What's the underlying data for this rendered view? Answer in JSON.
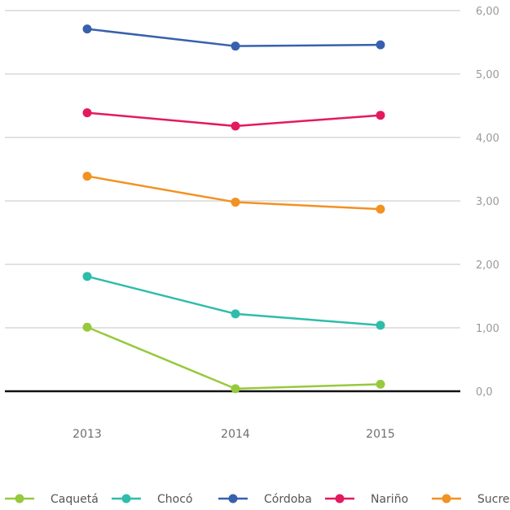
{
  "chart_data": {
    "type": "line",
    "categories": [
      "2013",
      "2014",
      "2015"
    ],
    "ylim": [
      0,
      6
    ],
    "yticks": [
      "0,0",
      "1,00",
      "2,00",
      "3,00",
      "4,00",
      "5,00",
      "6,00"
    ],
    "grid": true,
    "legend_position": "bottom",
    "series": [
      {
        "name": "Caquetá",
        "color": "#97c93d",
        "values": [
          1.01,
          0.04,
          0.11
        ]
      },
      {
        "name": "Chocó",
        "color": "#2ebdaa",
        "values": [
          1.81,
          1.22,
          1.04
        ]
      },
      {
        "name": "Córdoba",
        "color": "#3761ad",
        "values": [
          5.71,
          5.44,
          5.46
        ]
      },
      {
        "name": "Nariño",
        "color": "#e4195f",
        "values": [
          4.39,
          4.18,
          4.35
        ]
      },
      {
        "name": "Sucre",
        "color": "#f39121",
        "values": [
          3.39,
          2.98,
          2.87
        ]
      }
    ]
  }
}
